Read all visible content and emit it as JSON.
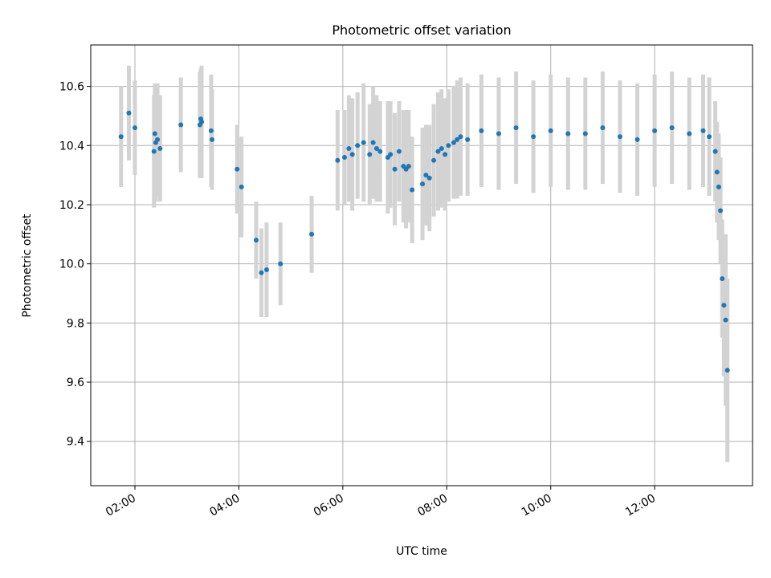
{
  "chart_data": {
    "type": "scatter",
    "title": "Photometric offset variation",
    "xlabel": "UTC time",
    "ylabel": "Photometric offset",
    "xlim": [
      "01:09",
      "13:53"
    ],
    "ylim": [
      9.25,
      10.74
    ],
    "grid": true,
    "x_ticks": [
      "02:00",
      "04:00",
      "06:00",
      "08:00",
      "10:00",
      "12:00"
    ],
    "y_ticks": [
      "9.4",
      "9.6",
      "9.8",
      "10.0",
      "10.2",
      "10.4",
      "10.6"
    ],
    "point_color": "#1f77b4",
    "errorbar_color": "#d3d3d3",
    "series": [
      {
        "x": [
          "01:44",
          "01:53",
          "02:00",
          "02:22",
          "02:23",
          "02:24",
          "02:26",
          "02:29",
          "02:53",
          "03:15",
          "03:16",
          "03:17",
          "03:28",
          "03:29",
          "03:58",
          "04:03",
          "04:20",
          "04:26",
          "04:32",
          "04:48",
          "05:24",
          "05:54",
          "06:02",
          "06:07",
          "06:11",
          "06:17",
          "06:24",
          "06:31",
          "06:35",
          "06:39",
          "06:43",
          "06:52",
          "06:55",
          "07:00",
          "07:05",
          "07:10",
          "07:13",
          "07:16",
          "07:20",
          "07:32",
          "07:36",
          "07:40",
          "07:45",
          "07:50",
          "07:54",
          "07:58",
          "08:02",
          "08:08",
          "08:12",
          "08:16",
          "08:24",
          "08:40",
          "09:00",
          "09:20",
          "09:40",
          "10:00",
          "10:20",
          "10:40",
          "11:00",
          "11:20",
          "11:40",
          "12:00",
          "12:20",
          "12:40",
          "12:56",
          "13:03",
          "13:10",
          "13:12",
          "13:14",
          "13:16",
          "13:18",
          "13:20",
          "13:22",
          "13:24"
        ],
        "y": [
          10.43,
          10.51,
          10.46,
          10.38,
          10.44,
          10.41,
          10.42,
          10.39,
          10.47,
          10.47,
          10.49,
          10.48,
          10.45,
          10.42,
          10.32,
          10.26,
          10.08,
          9.97,
          9.98,
          10.0,
          10.1,
          10.35,
          10.36,
          10.39,
          10.37,
          10.4,
          10.41,
          10.37,
          10.41,
          10.39,
          10.38,
          10.36,
          10.37,
          10.32,
          10.38,
          10.33,
          10.32,
          10.33,
          10.25,
          10.27,
          10.3,
          10.29,
          10.35,
          10.38,
          10.39,
          10.37,
          10.4,
          10.41,
          10.42,
          10.43,
          10.42,
          10.45,
          10.44,
          10.46,
          10.43,
          10.45,
          10.44,
          10.44,
          10.46,
          10.43,
          10.42,
          10.45,
          10.46,
          10.44,
          10.45,
          10.43,
          10.38,
          10.31,
          10.26,
          10.18,
          9.95,
          9.86,
          9.81,
          9.64
        ],
        "err": [
          0.17,
          0.16,
          0.16,
          0.19,
          0.17,
          0.2,
          0.19,
          0.18,
          0.16,
          0.18,
          0.17,
          0.19,
          0.19,
          0.17,
          0.15,
          0.17,
          0.13,
          0.15,
          0.16,
          0.14,
          0.13,
          0.17,
          0.16,
          0.18,
          0.19,
          0.18,
          0.2,
          0.17,
          0.19,
          0.18,
          0.17,
          0.19,
          0.18,
          0.19,
          0.17,
          0.19,
          0.2,
          0.19,
          0.18,
          0.19,
          0.17,
          0.18,
          0.19,
          0.2,
          0.2,
          0.19,
          0.19,
          0.19,
          0.2,
          0.2,
          0.19,
          0.19,
          0.19,
          0.19,
          0.19,
          0.19,
          0.19,
          0.19,
          0.19,
          0.19,
          0.19,
          0.19,
          0.19,
          0.19,
          0.19,
          0.2,
          0.17,
          0.17,
          0.18,
          0.18,
          0.2,
          0.24,
          0.29,
          0.31
        ]
      }
    ]
  }
}
